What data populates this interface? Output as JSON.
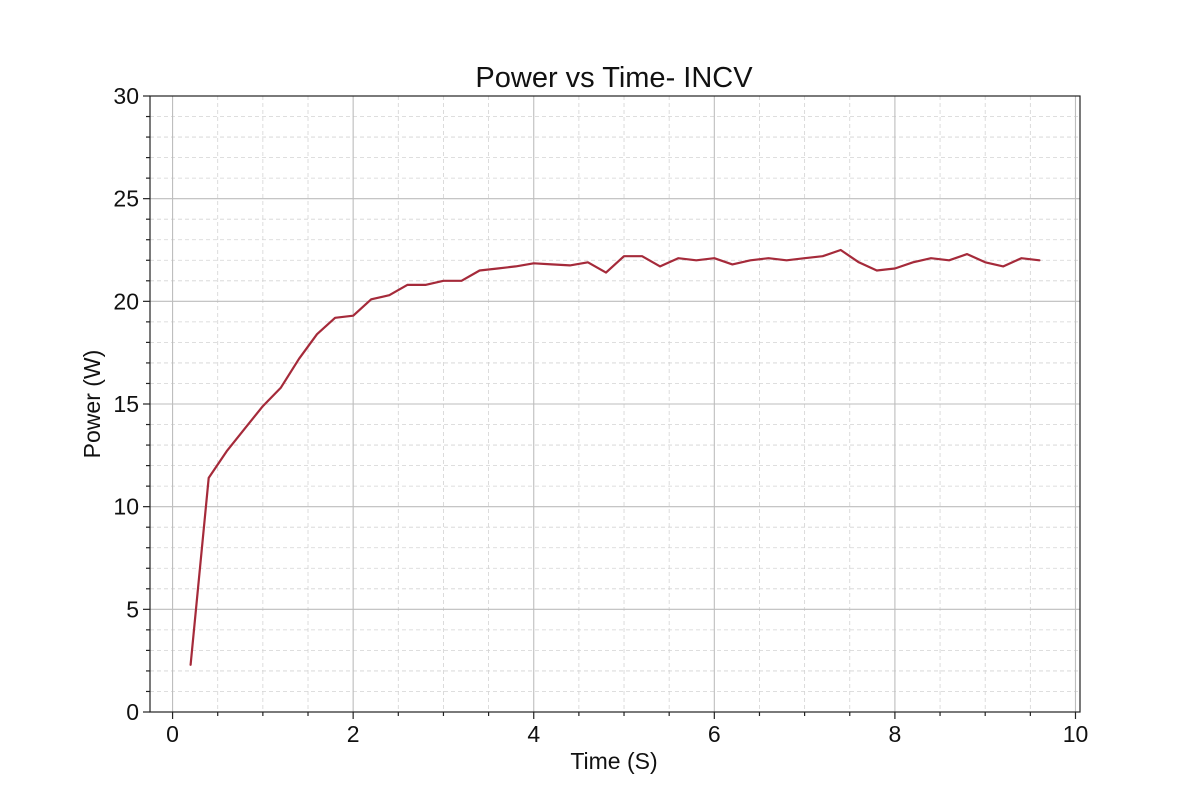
{
  "chart_data": {
    "type": "line",
    "title": "Power vs Time- INCV",
    "xlabel": "Time (S)",
    "ylabel": "Power (W)",
    "xlim": [
      -0.25,
      10.05
    ],
    "ylim": [
      0,
      30
    ],
    "xticks": [
      0,
      2,
      4,
      6,
      8,
      10
    ],
    "yticks": [
      0,
      5,
      10,
      15,
      20,
      25,
      30
    ],
    "grid": true,
    "minor_grid": true,
    "legend": "none",
    "series": [
      {
        "color": "#a52a3a",
        "x": [
          0.2,
          0.4,
          0.6,
          0.8,
          1.0,
          1.2,
          1.4,
          1.6,
          1.8,
          2.0,
          2.2,
          2.4,
          2.6,
          2.8,
          3.0,
          3.2,
          3.4,
          3.6,
          3.8,
          4.0,
          4.2,
          4.4,
          4.6,
          4.8,
          5.0,
          5.2,
          5.4,
          5.6,
          5.8,
          6.0,
          6.2,
          6.4,
          6.6,
          6.8,
          7.0,
          7.2,
          7.4,
          7.6,
          7.8,
          8.0,
          8.2,
          8.4,
          8.6,
          8.8,
          9.0,
          9.2,
          9.4,
          9.6
        ],
        "y": [
          2.3,
          11.4,
          12.7,
          13.8,
          14.9,
          15.8,
          17.2,
          18.4,
          19.2,
          19.3,
          20.1,
          20.3,
          20.8,
          20.8,
          21.0,
          21.0,
          21.5,
          21.6,
          21.7,
          21.85,
          21.8,
          21.75,
          21.9,
          21.4,
          22.2,
          22.2,
          21.7,
          22.1,
          22.0,
          22.1,
          21.8,
          22.0,
          22.1,
          22.0,
          22.1,
          22.2,
          22.5,
          21.9,
          21.5,
          21.6,
          21.9,
          22.1,
          22.0,
          22.3,
          21.9,
          21.7,
          22.1,
          22.0
        ]
      }
    ]
  }
}
